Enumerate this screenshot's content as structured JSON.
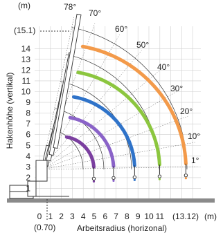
{
  "diagram": {
    "y_unit_label": "(m)",
    "x_unit_label": "(m)",
    "y_axis_title": "Hakenhöhe (vertikal)",
    "x_axis_title": "Arbeitsradius (horizonal)",
    "max_height_label": "(15.1)",
    "max_radius_label": "(13.12)",
    "min_radius_label": "(0.70)",
    "y_ticks": [
      "1",
      "2",
      "3",
      "4",
      "5",
      "6",
      "7",
      "8",
      "9",
      "10",
      "11",
      "12",
      "13",
      "14"
    ],
    "x_ticks": [
      "0",
      "1",
      "2",
      "3",
      "4",
      "5",
      "6",
      "7",
      "8",
      "9",
      "10",
      "11"
    ],
    "angle_labels": [
      "78°",
      "70°",
      "60°",
      "50°",
      "40°",
      "30°",
      "20°",
      "10°",
      "1°"
    ],
    "boom_colors": {
      "section_1": "#7b3fa0",
      "section_2": "#8a63c8",
      "section_3": "#2f73c9",
      "section_4": "#8cc63f",
      "section_5": "#f39a4a"
    }
  }
}
